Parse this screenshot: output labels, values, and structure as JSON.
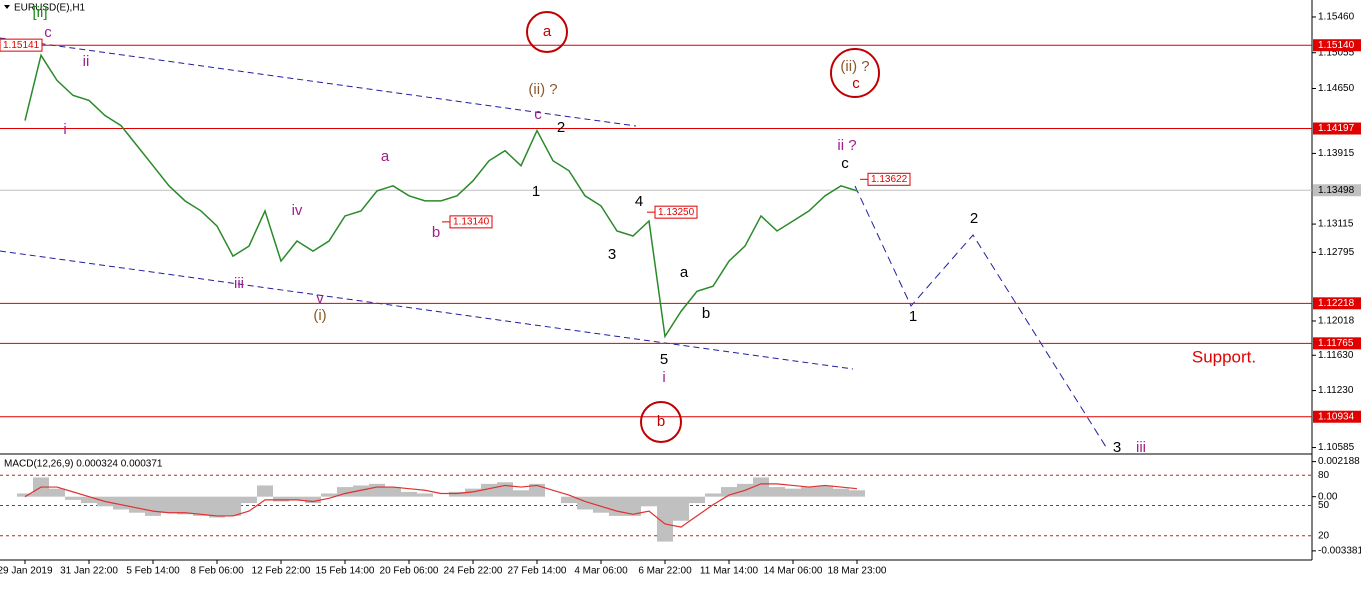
{
  "chart_data": [
    {
      "type": "line",
      "title": "EURUSD(E),H1",
      "color": "#2a8a2a",
      "categories": [
        "29 Jan 2019",
        null,
        null,
        null,
        "31 Jan 22:00",
        null,
        null,
        null,
        "5 Feb 14:00",
        null,
        null,
        null,
        "8 Feb 06:00",
        null,
        null,
        null,
        "12 Feb 22:00",
        null,
        null,
        null,
        "15 Feb 14:00",
        null,
        null,
        null,
        "20 Feb 06:00",
        null,
        null,
        null,
        "24 Feb 22:00",
        null,
        null,
        null,
        "27 Feb 14:00",
        null,
        null,
        null,
        "4 Mar 06:00",
        null,
        null,
        null,
        "6 Mar 22:00",
        null,
        null,
        null,
        "11 Mar 14:00",
        null,
        null,
        null,
        "14 Mar 06:00",
        null,
        null,
        null,
        "18 Mar 23:00"
      ],
      "values": [
        1.14287,
        1.15026,
        1.14742,
        1.14572,
        1.14515,
        1.14344,
        1.1423,
        1.14003,
        1.13776,
        1.13548,
        1.13378,
        1.13264,
        1.13093,
        1.12752,
        1.12866,
        1.13264,
        1.12696,
        1.12923,
        1.12809,
        1.12923,
        1.13207,
        1.13264,
        1.13491,
        1.13548,
        1.13435,
        1.13378,
        1.13378,
        1.13435,
        1.13605,
        1.13832,
        1.13946,
        1.13776,
        1.14174,
        1.13832,
        1.13719,
        1.13435,
        1.13321,
        1.13037,
        1.1298,
        1.1315,
        1.11843,
        1.12127,
        1.12354,
        1.12411,
        1.12696,
        1.12866,
        1.13207,
        1.13037,
        1.1315,
        1.13264,
        1.13435,
        1.13548,
        1.13491
      ],
      "ylim": [
        1.10512,
        1.15652
      ],
      "yticks": [
        {
          "value": 1.1546,
          "label": "1.15460"
        },
        {
          "value": 1.15055,
          "label": "1.15055"
        },
        {
          "value": 1.1465,
          "label": "1.14650"
        },
        {
          "value": 1.13915,
          "label": "1.13915"
        },
        {
          "value": 1.13115,
          "label": "1.13115"
        },
        {
          "value": 1.12795,
          "label": "1.12795"
        },
        {
          "value": 1.12018,
          "label": "1.12018"
        },
        {
          "value": 1.1163,
          "label": "1.11630"
        },
        {
          "value": 1.1123,
          "label": "1.11230"
        },
        {
          "value": 1.10585,
          "label": "1.10585"
        }
      ],
      "levels": [
        {
          "value": 1.1514,
          "label": "1.15140"
        },
        {
          "value": 1.14197,
          "label": "1.14197"
        },
        {
          "value": 1.12218,
          "label": "1.12218"
        },
        {
          "value": 1.11765,
          "label": "1.11765"
        },
        {
          "value": 1.10934,
          "label": "1.10934"
        }
      ],
      "level_color": "#e00000",
      "last_price": {
        "value": 1.13498,
        "label": "1.13498"
      },
      "tags": [
        {
          "value": 1.15141,
          "label": "1.15141"
        },
        {
          "value": 1.1314,
          "label": "1.13140"
        },
        {
          "value": 1.1325,
          "label": "1.13250"
        },
        {
          "value": 1.13622,
          "label": "1.13622"
        }
      ],
      "annotations": [
        {
          "text": "[ii]",
          "color": "#1a8a1a"
        },
        {
          "text": "c",
          "color": "#a0208a"
        },
        {
          "text": "ii",
          "color": "#a0208a"
        },
        {
          "text": "i",
          "color": "#a0208a"
        },
        {
          "text": "a",
          "color": "#c00000",
          "circled": true
        },
        {
          "text": "(ii) ?",
          "color": "#8b5a2b"
        },
        {
          "text": "c",
          "color": "#a0208a"
        },
        {
          "text": "2",
          "color": "#000000"
        },
        {
          "text": "1",
          "color": "#000000"
        },
        {
          "text": "a",
          "color": "#a0208a"
        },
        {
          "text": "iv",
          "color": "#a0208a"
        },
        {
          "text": "b",
          "color": "#a0208a"
        },
        {
          "text": "iii",
          "color": "#a0208a"
        },
        {
          "text": "v",
          "color": "#a0208a"
        },
        {
          "text": "(i)",
          "color": "#8b5a2b"
        },
        {
          "text": "4",
          "color": "#000000"
        },
        {
          "text": "3",
          "color": "#000000"
        },
        {
          "text": "a",
          "color": "#000000"
        },
        {
          "text": "b",
          "color": "#000000"
        },
        {
          "text": "5",
          "color": "#000000"
        },
        {
          "text": "i",
          "color": "#a0208a"
        },
        {
          "text": "b",
          "color": "#c00000",
          "circled": true
        },
        {
          "text": "(ii) ?",
          "color": "#8b5a2b",
          "circled": true
        },
        {
          "text": "c",
          "color": "#c00000"
        },
        {
          "text": "ii ?",
          "color": "#a0208a"
        },
        {
          "text": "c",
          "color": "#000000"
        },
        {
          "text": "2",
          "color": "#000000"
        },
        {
          "text": "1",
          "color": "#000000"
        },
        {
          "text": "3",
          "color": "#000000"
        },
        {
          "text": "iii",
          "color": "#a0208a"
        },
        {
          "text": "Support.",
          "color": "#e00000"
        }
      ]
    },
    {
      "type": "macd",
      "title": "MACD(12,26,9) 0.000324 0.000371",
      "series": [
        {
          "color": "#c0c0c0",
          "values": [
            0.0002,
            0.0012,
            0.0005,
            -0.0002,
            -0.0004,
            -0.0006,
            -0.0008,
            -0.001,
            -0.0012,
            -0.001,
            -0.0011,
            -0.0012,
            -0.0013,
            -0.0012,
            -0.0004,
            0.0007,
            -0.0003,
            -0.0002,
            -0.0004,
            0.0002,
            0.0006,
            0.0007,
            0.0008,
            0.0006,
            0.0003,
            0.0002,
            0.0,
            0.0003,
            0.0005,
            0.0008,
            0.0009,
            0.0004,
            0.0008,
            0.0,
            -0.0004,
            -0.0008,
            -0.001,
            -0.0012,
            -0.0012,
            -0.0006,
            -0.0028,
            -0.0015,
            -0.0004,
            0.0002,
            0.0006,
            0.0008,
            0.0012,
            0.0006,
            0.0005,
            0.0006,
            0.0007,
            0.0005,
            0.0004
          ]
        },
        {
          "color": "#e03030",
          "values": [
            0.0,
            0.0006,
            0.0006,
            0.0003,
            0.0,
            -0.0003,
            -0.0005,
            -0.0007,
            -0.0009,
            -0.001,
            -0.001,
            -0.0011,
            -0.0012,
            -0.0012,
            -0.0009,
            -0.0002,
            -0.0002,
            -0.0002,
            -0.0003,
            -0.0001,
            0.0002,
            0.0004,
            0.0006,
            0.0006,
            0.0005,
            0.0004,
            0.0002,
            0.0002,
            0.0003,
            0.0005,
            0.0007,
            0.0006,
            0.0007,
            0.0004,
            0.0001,
            -0.0003,
            -0.0006,
            -0.0009,
            -0.0011,
            -0.0009,
            -0.0017,
            -0.0019,
            -0.0012,
            -0.0005,
            0.0001,
            0.0004,
            0.0008,
            0.0008,
            0.0007,
            0.0006,
            0.0007,
            0.0006,
            0.0005
          ]
        }
      ],
      "ylim": [
        -0.0037,
        0.0026
      ],
      "yticks": [
        0.002188,
        {
          "value": 0,
          "label": "0.00"
        },
        -0.003381
      ],
      "y2lim": [
        0,
        100
      ],
      "y2ticks": [
        80,
        50,
        20
      ],
      "y2_color": "#c02020"
    }
  ]
}
